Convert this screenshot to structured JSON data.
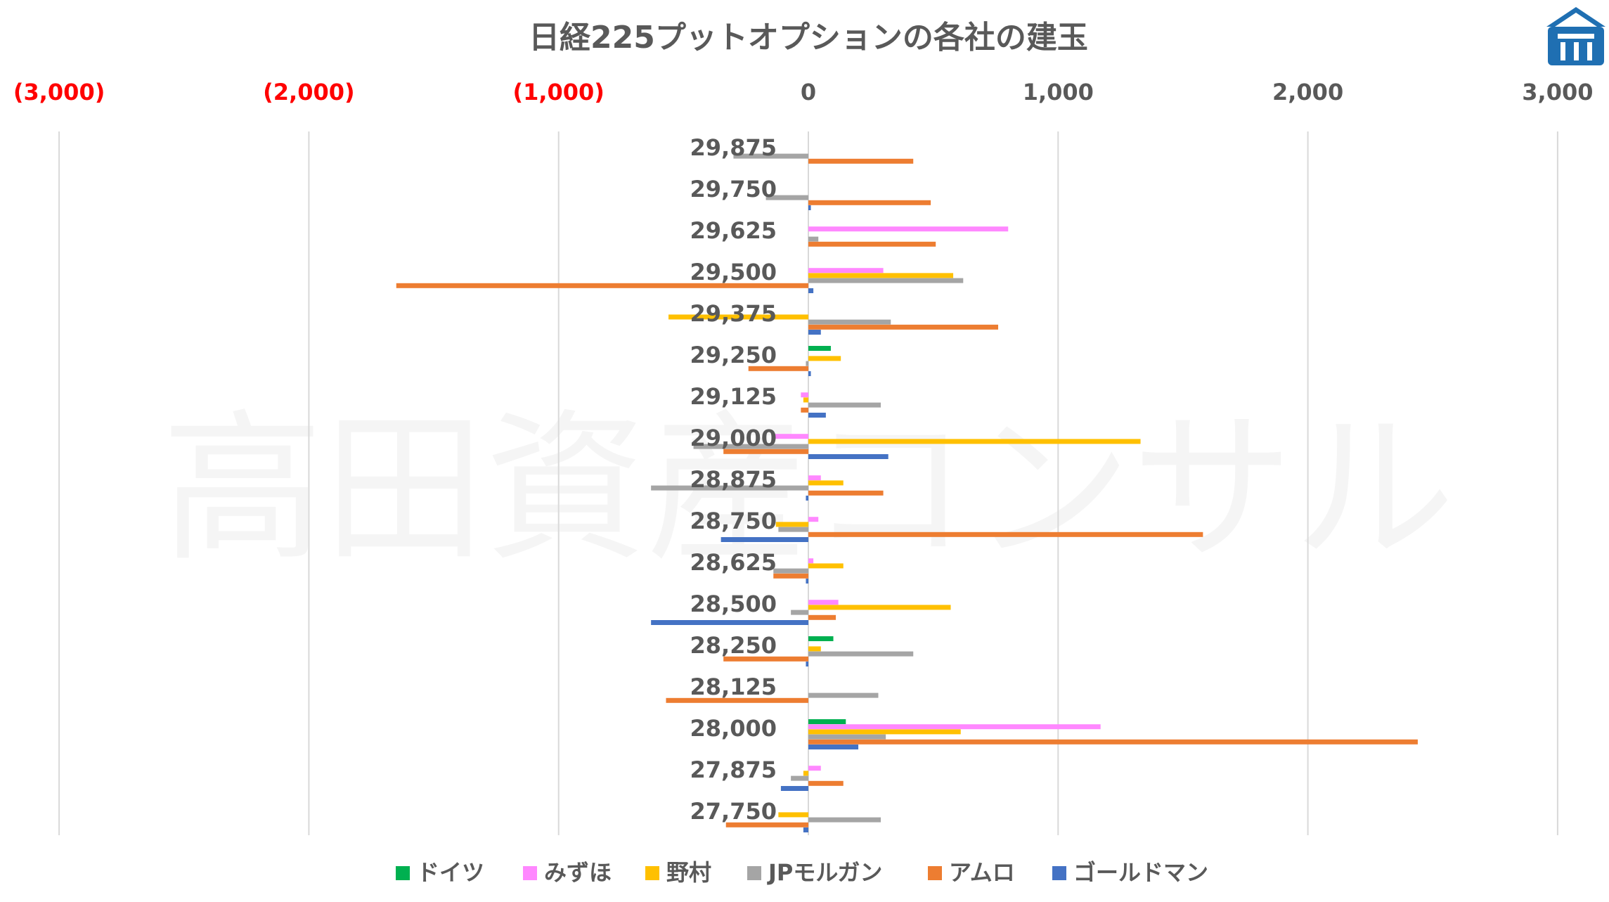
{
  "chart_data": {
    "type": "bar",
    "orientation": "horizontal",
    "title": "日経225プットオプションの各社の建玉",
    "watermark": "高田資産コンサル",
    "xlim": [
      -3000,
      3000
    ],
    "x_ticks": [
      {
        "value": -3000,
        "label": "(3,000)",
        "color": "#ff0000"
      },
      {
        "value": -2000,
        "label": "(2,000)",
        "color": "#ff0000"
      },
      {
        "value": -1000,
        "label": "(1,000)",
        "color": "#ff0000"
      },
      {
        "value": 0,
        "label": "0",
        "color": "#595959"
      },
      {
        "value": 1000,
        "label": "1,000",
        "color": "#595959"
      },
      {
        "value": 2000,
        "label": "2,000",
        "color": "#595959"
      },
      {
        "value": 3000,
        "label": "3,000",
        "color": "#595959"
      }
    ],
    "x_axis_position": "top",
    "grid": true,
    "legend_position": "bottom",
    "categories": [
      "29,875",
      "29,750",
      "29,625",
      "29,500",
      "29,375",
      "29,250",
      "29,125",
      "29,000",
      "28,875",
      "28,750",
      "28,625",
      "28,500",
      "28,250",
      "28,125",
      "28,000",
      "27,875",
      "27,750"
    ],
    "series": [
      {
        "name": "ドイツ",
        "color": "#00b050",
        "values": [
          0,
          0,
          0,
          0,
          0,
          90,
          0,
          0,
          0,
          0,
          0,
          0,
          100,
          0,
          150,
          0,
          0
        ]
      },
      {
        "name": "みずほ",
        "color": "#ff88ff",
        "values": [
          0,
          0,
          800,
          300,
          0,
          0,
          -30,
          -140,
          50,
          40,
          20,
          120,
          0,
          0,
          1170,
          50,
          0
        ]
      },
      {
        "name": "野村",
        "color": "#ffc000",
        "values": [
          0,
          0,
          0,
          580,
          -560,
          130,
          -20,
          1330,
          140,
          -130,
          140,
          570,
          50,
          0,
          610,
          -20,
          -120
        ]
      },
      {
        "name": "JPモルガン",
        "color": "#a5a5a5",
        "values": [
          -300,
          -170,
          40,
          620,
          330,
          -10,
          290,
          -460,
          -630,
          -120,
          -140,
          -70,
          420,
          280,
          310,
          -70,
          290
        ]
      },
      {
        "name": "アムロ",
        "color": "#ed7d31",
        "values": [
          420,
          490,
          510,
          -1650,
          760,
          -240,
          -30,
          -340,
          300,
          1580,
          -140,
          110,
          -340,
          -570,
          2440,
          140,
          -330
        ]
      },
      {
        "name": "ゴールドマン",
        "color": "#4472c4",
        "values": [
          0,
          10,
          0,
          20,
          50,
          10,
          70,
          320,
          -10,
          -350,
          -10,
          -630,
          -10,
          0,
          200,
          -110,
          -20
        ]
      }
    ]
  }
}
